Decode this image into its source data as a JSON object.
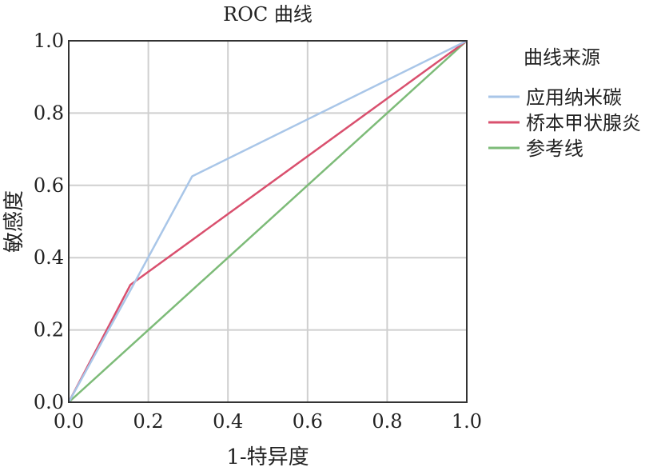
{
  "chart_data": {
    "type": "line",
    "title": "ROC 曲线",
    "xlabel": "1-特异度",
    "ylabel": "敏感度",
    "xlim": [
      0.0,
      1.0
    ],
    "ylim": [
      0.0,
      1.0
    ],
    "xticks": [
      "0.0",
      "0.2",
      "0.4",
      "0.6",
      "0.8",
      "1.0"
    ],
    "yticks": [
      "0.0",
      "0.2",
      "0.4",
      "0.6",
      "0.8",
      "1.0"
    ],
    "grid": true,
    "legend": {
      "title": "曲线来源",
      "placement": "right"
    },
    "series": [
      {
        "name": "应用纳米碳",
        "color": "#a9c6e8",
        "x": [
          0.0,
          0.16,
          0.31,
          1.0
        ],
        "y": [
          0.0,
          0.32,
          0.625,
          1.0
        ]
      },
      {
        "name": "桥本甲状腺炎",
        "color": "#d9506e",
        "x": [
          0.0,
          0.155,
          1.0
        ],
        "y": [
          0.0,
          0.325,
          1.0
        ]
      },
      {
        "name": "参考线",
        "color": "#7dbb78",
        "x": [
          0.0,
          1.0
        ],
        "y": [
          0.0,
          1.0
        ]
      }
    ]
  }
}
